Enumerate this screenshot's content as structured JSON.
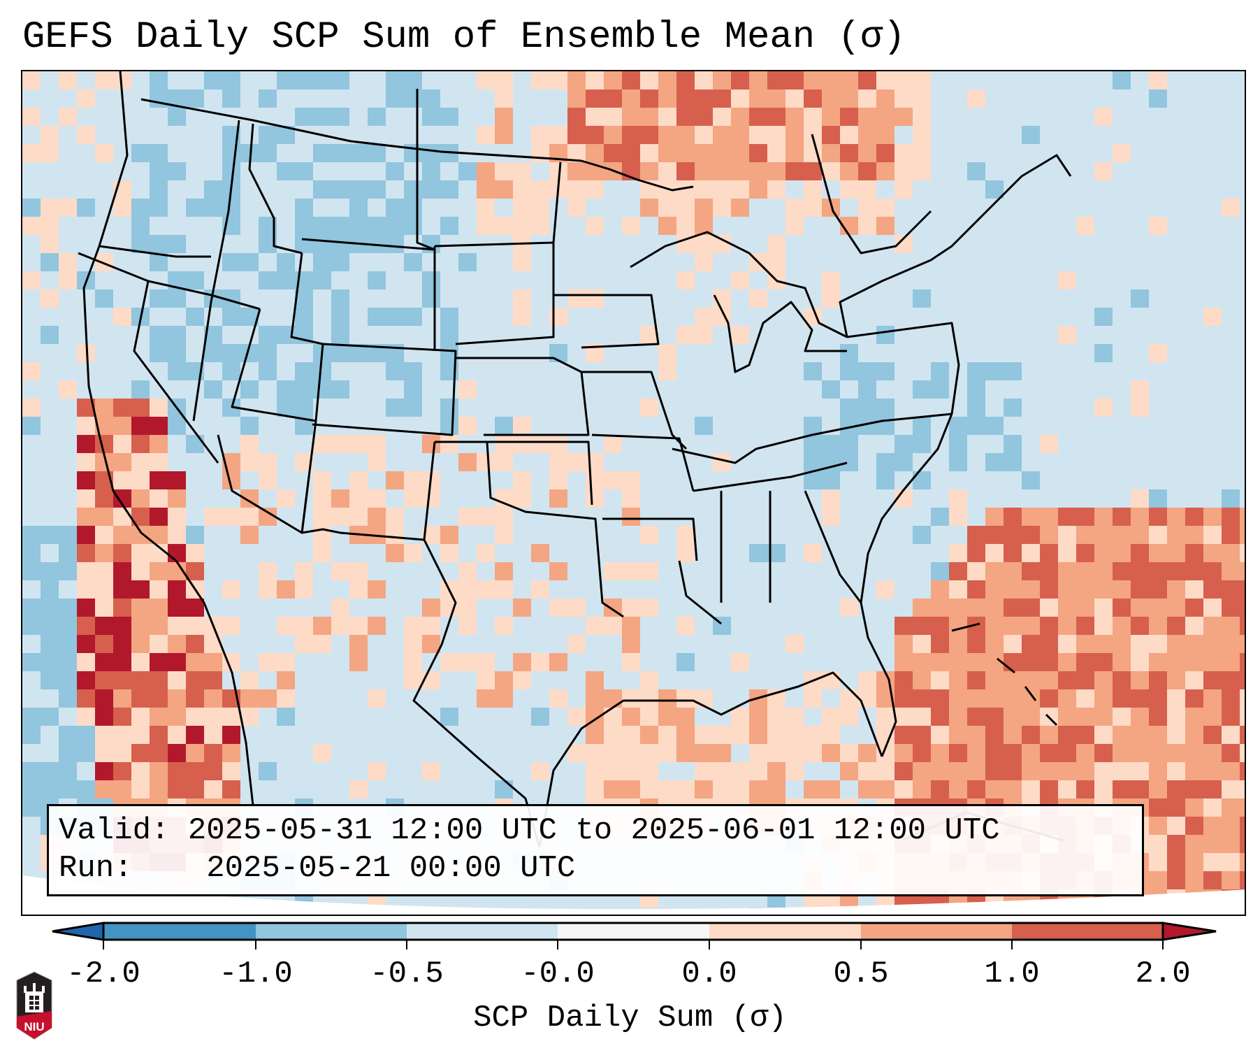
{
  "title": "GEFS Daily SCP Sum of Ensemble Mean (σ)",
  "info_box": {
    "valid_label": "Valid:",
    "valid_value": "2025-05-31 12:00 UTC to 2025-06-01 12:00 UTC",
    "run_label": "Run:",
    "run_value": "2025-05-21 00:00 UTC"
  },
  "colorbar": {
    "label": "SCP Daily Sum (σ)",
    "ticks": [
      "-2.0",
      "-1.0",
      "-0.5",
      "-0.0",
      "0.0",
      "0.5",
      "1.0",
      "2.0"
    ],
    "colors": {
      "under": "#2166ac",
      "bin_neg2_neg1": "#4393c3",
      "bin_neg1_neg05": "#92c5de",
      "bin_neg05_neg0": "#d1e5f0",
      "bin_neg0_0": "#f7f7f7",
      "bin_0_05": "#fddbc7",
      "bin_05_1": "#f4a582",
      "bin_1_2": "#d6604d",
      "over": "#b2182b"
    }
  },
  "map": {
    "region": "Continental United States",
    "projection_view": "Lambert Conformal",
    "features": [
      "state-borders",
      "coastlines",
      "country-borders",
      "great-lakes"
    ]
  },
  "logo": {
    "text": "NIU"
  }
}
